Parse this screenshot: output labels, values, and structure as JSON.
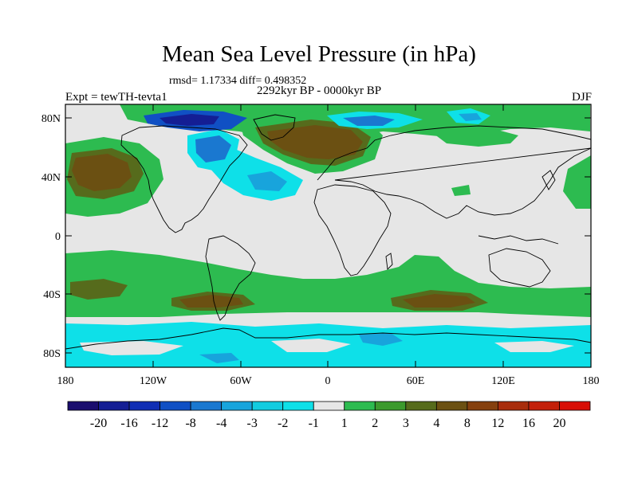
{
  "title": "Mean Sea Level Pressure (in hPa)",
  "stats": "rmsd= 1.17334  diff= 0.498352",
  "subtitle": "2292kyr BP - 0000kyr BP",
  "experiment": "Expt = tewTH-tevta1",
  "season": "DJF",
  "y_ticks": [
    "80N",
    "40N",
    "0",
    "40S",
    "80S"
  ],
  "x_ticks": [
    "180",
    "120W",
    "60W",
    "0",
    "60E",
    "120E",
    "180"
  ],
  "colorbar": {
    "labels": [
      "-20",
      "-16",
      "-12",
      "-8",
      "-4",
      "-3",
      "-2",
      "-1",
      "1",
      "2",
      "3",
      "4",
      "8",
      "12",
      "16",
      "20"
    ],
    "colors": [
      "#1a0e6e",
      "#141e94",
      "#102eb4",
      "#1050c4",
      "#1a78d0",
      "#18a4dc",
      "#12cce0",
      "#0ee0e8",
      "#e6e6e6",
      "#2dbb50",
      "#3c9a2d",
      "#566b1c",
      "#6b5012",
      "#85400e",
      "#a82d0c",
      "#c3200a",
      "#d80e05"
    ]
  },
  "chart_data": {
    "type": "filled-contour-map",
    "variable": "Mean Sea Level Pressure difference",
    "units": "hPa",
    "projection": "cylindrical equidistant",
    "lon_range": [
      -180,
      180
    ],
    "lat_range": [
      -90,
      90
    ],
    "levels": [
      -20,
      -16,
      -12,
      -8,
      -4,
      -3,
      -2,
      -1,
      1,
      2,
      3,
      4,
      8,
      12,
      16,
      20
    ],
    "rmsd": 1.17334,
    "diff": 0.498352
  }
}
